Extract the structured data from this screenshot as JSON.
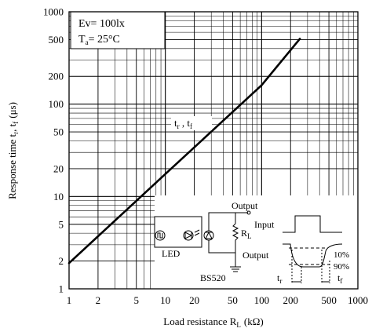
{
  "chart_data": {
    "type": "line",
    "x_scale": "log",
    "y_scale": "log",
    "xlim": [
      1,
      1000
    ],
    "ylim": [
      1,
      1000
    ],
    "x_ticks": [
      1,
      2,
      5,
      10,
      20,
      50,
      100,
      200,
      500,
      1000
    ],
    "x_tick_labels": [
      "1",
      "2",
      "5",
      "10",
      "20",
      "50",
      "100",
      "200",
      "500",
      "1000"
    ],
    "y_ticks": [
      1,
      2,
      5,
      10,
      20,
      50,
      100,
      200,
      500,
      1000
    ],
    "y_tick_labels": [
      "1",
      "2",
      "5",
      "10",
      "20",
      "50",
      "100",
      "200",
      "500",
      "1000"
    ],
    "xlabel": {
      "main": "Load resistance R",
      "sub": "L",
      "unit": "(kΩ)"
    },
    "ylabel": {
      "main": "Response time t",
      "sub1": "r",
      "mid": ", t",
      "sub2": "f",
      "unit": "(μs)"
    },
    "grid": true,
    "conditions": {
      "ev": "Ev=  100lx",
      "ta_main": "T",
      "ta_sub": "a",
      "ta_value": "=  25°C"
    },
    "series": [
      {
        "label_main1": "t",
        "label_sub1": "r",
        "label_sep": " , t",
        "label_sub2": "f",
        "x": [
          1,
          10,
          100,
          250
        ],
        "y": [
          1.9,
          17.5,
          160,
          510
        ]
      }
    ],
    "inset": {
      "output_top": "Output",
      "rl_main": "R",
      "rl_sub": "L",
      "led": "LED",
      "model": "BS520",
      "input": "Input",
      "output": "Output",
      "pct10": "10%",
      "pct90": "90%",
      "tr_main": "t",
      "tr_sub": "r",
      "tf_main": "t",
      "tf_sub": "f"
    }
  }
}
